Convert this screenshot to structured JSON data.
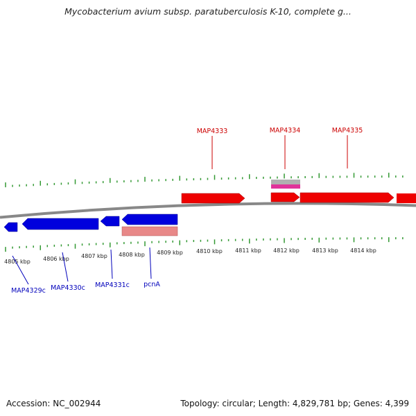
{
  "title": "Mycobacterium avium subsp. paratuberculosis K-10, complete g...",
  "footer": {
    "accession": "Accession: NC_002944",
    "summary": "Topology: circular; Length: 4,829,781 bp; Genes: 4,399"
  },
  "colors": {
    "forward_gene": "#ee0000",
    "reverse_gene": "#0000dd",
    "forward_label": "#cc0000",
    "reverse_label": "#0000bb",
    "tick": "#339933",
    "backbone": "#888888",
    "pink_feature": "#e88888",
    "magenta_feature": "#e0339a",
    "grey_feature": "#b0b0b0"
  },
  "kbp_labels": [
    "4805 kbp",
    "4806 kbp",
    "4807 kbp",
    "4808 kbp",
    "4809 kbp",
    "4810 kbp",
    "4811 kbp",
    "4812 kbp",
    "4813 kbp",
    "4814 kbp"
  ],
  "forward_genes": [
    {
      "name": "MAP4333"
    },
    {
      "name": "MAP4334"
    },
    {
      "name": "MAP4335"
    }
  ],
  "reverse_genes": [
    {
      "name": "MAP4329c"
    },
    {
      "name": "MAP4330c"
    },
    {
      "name": "MAP4331c"
    },
    {
      "name": "pcnA"
    }
  ]
}
